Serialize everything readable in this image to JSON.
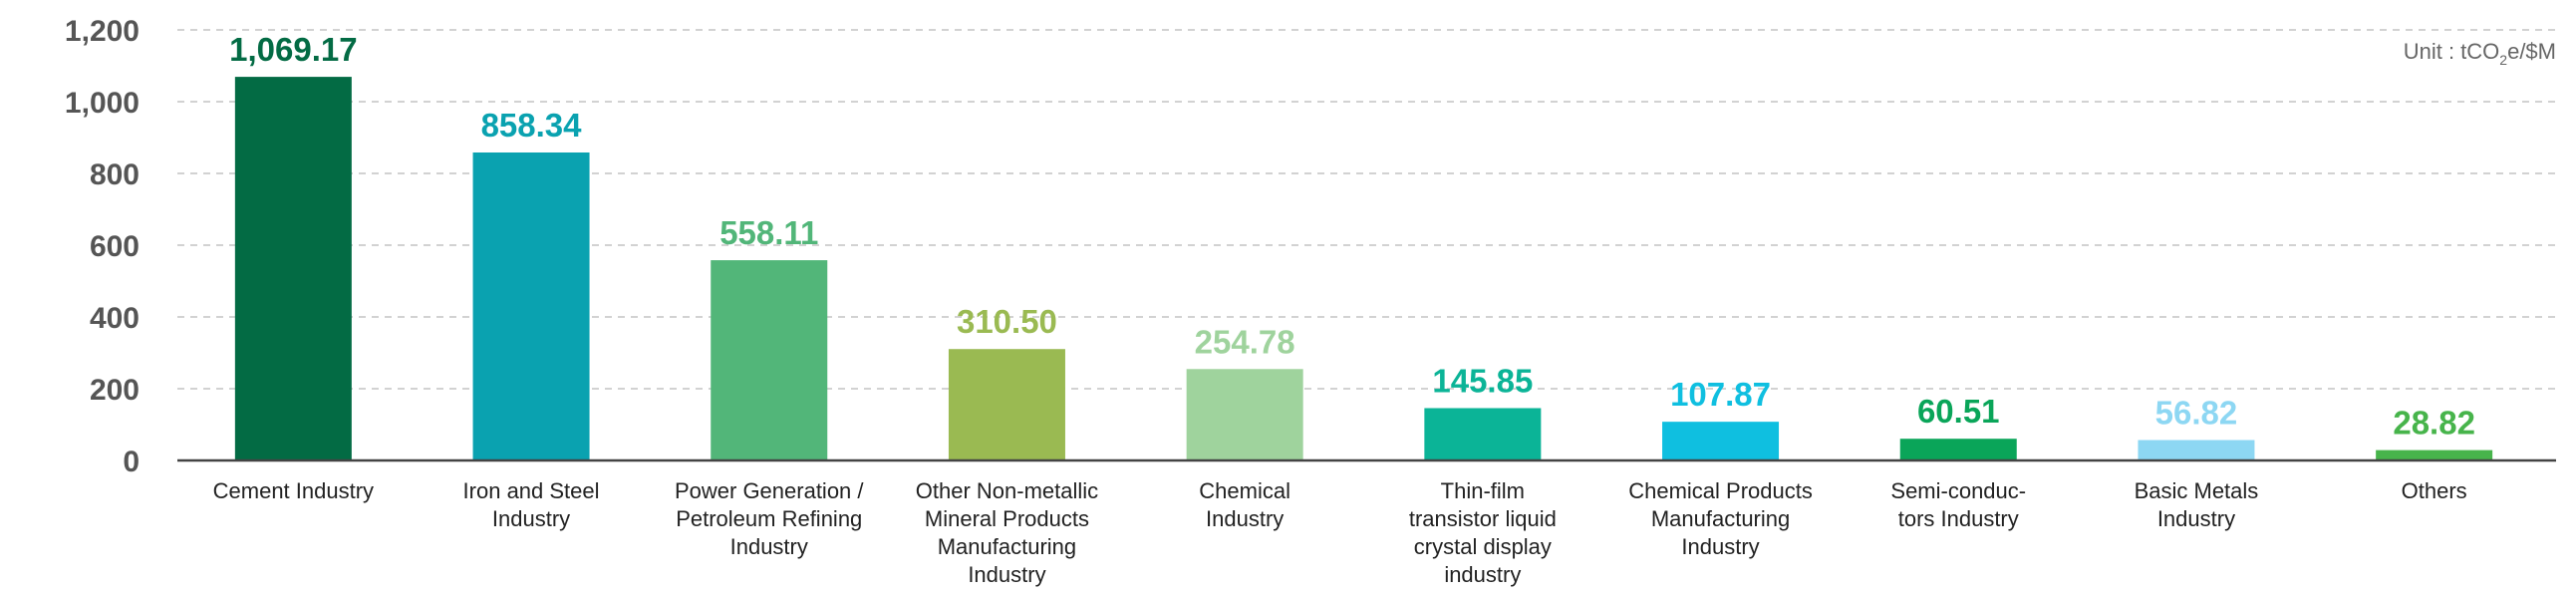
{
  "chart_data": {
    "type": "bar",
    "title": "",
    "xlabel": "",
    "ylabel": "",
    "unit_label": {
      "prefix": "Unit : tCO",
      "sub": "2",
      "suffix": "e/$M"
    },
    "ylim": [
      0,
      1200
    ],
    "yticks": [
      0,
      200,
      400,
      600,
      800,
      1000,
      1200
    ],
    "ytick_labels": [
      "0",
      "200",
      "400",
      "600",
      "800",
      "1,000",
      "1,200"
    ],
    "grid": true,
    "categories": [
      [
        "Cement Industry"
      ],
      [
        "Iron and Steel",
        "Industry"
      ],
      [
        "Power Generation /",
        "Petroleum Refining",
        "Industry"
      ],
      [
        "Other Non-metallic",
        "Mineral Products",
        "Manufacturing",
        "Industry"
      ],
      [
        "Chemical",
        "Industry"
      ],
      [
        "Thin-film",
        "transistor liquid",
        "crystal display",
        "industry"
      ],
      [
        "Chemical Products",
        "Manufacturing",
        "Industry"
      ],
      [
        "Semi-conduc-",
        "tors Industry"
      ],
      [
        "Basic Metals",
        "Industry"
      ],
      [
        "Others"
      ]
    ],
    "values": [
      1069.17,
      858.34,
      558.11,
      310.5,
      254.78,
      145.85,
      107.87,
      60.51,
      56.82,
      28.82
    ],
    "value_labels": [
      "1,069.17",
      "858.34",
      "558.11",
      "310.50",
      "254.78",
      "145.85",
      "107.87",
      "60.51",
      "56.82",
      "28.82"
    ],
    "bar_colors": [
      "#036b44",
      "#0aa2b0",
      "#52b679",
      "#9aba52",
      "#9fd39d",
      "#0bb497",
      "#0fbfe0",
      "#0aa559",
      "#8dd7f3",
      "#47b44b"
    ],
    "label_colors": [
      "#036b44",
      "#0aa2b0",
      "#52b679",
      "#9aba52",
      "#9fd39d",
      "#0bb497",
      "#0fbfe0",
      "#0aa559",
      "#8dd7f3",
      "#47b44b"
    ]
  }
}
